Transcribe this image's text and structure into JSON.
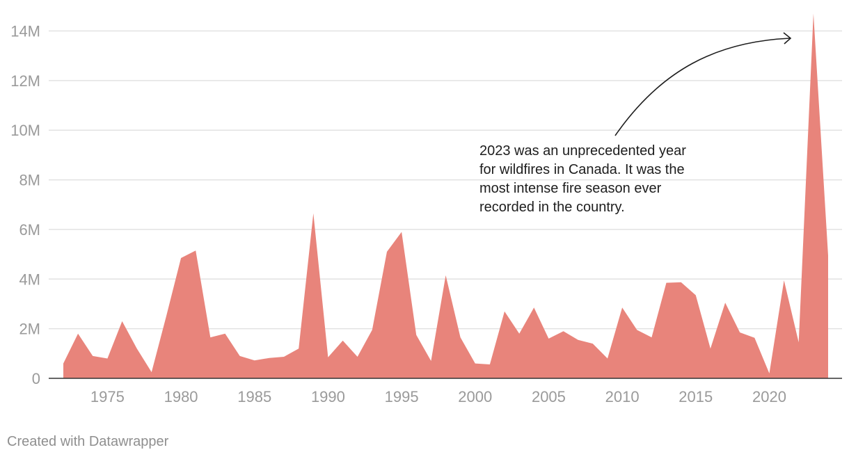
{
  "chart_data": {
    "type": "area",
    "x": [
      1972,
      1973,
      1974,
      1975,
      1976,
      1977,
      1978,
      1979,
      1980,
      1981,
      1982,
      1983,
      1984,
      1985,
      1986,
      1987,
      1988,
      1989,
      1990,
      1991,
      1992,
      1993,
      1994,
      1995,
      1996,
      1997,
      1998,
      1999,
      2000,
      2001,
      2002,
      2003,
      2004,
      2005,
      2006,
      2007,
      2008,
      2009,
      2010,
      2011,
      2012,
      2013,
      2014,
      2015,
      2016,
      2017,
      2018,
      2019,
      2020,
      2021,
      2022,
      2023,
      2024
    ],
    "y": [
      600000,
      1800000,
      900000,
      800000,
      2300000,
      1200000,
      250000,
      2500000,
      4850000,
      5150000,
      1650000,
      1800000,
      900000,
      720000,
      820000,
      870000,
      1200000,
      6650000,
      850000,
      1520000,
      870000,
      1950000,
      5100000,
      5900000,
      1750000,
      700000,
      4150000,
      1650000,
      600000,
      560000,
      2700000,
      1800000,
      2850000,
      1600000,
      1900000,
      1550000,
      1400000,
      800000,
      2850000,
      1950000,
      1650000,
      3850000,
      3870000,
      3350000,
      1200000,
      3050000,
      1850000,
      1630000,
      200000,
      3950000,
      1450000,
      14700000,
      4950000
    ],
    "xticks": [
      "1975",
      "1980",
      "1985",
      "1990",
      "1995",
      "2000",
      "2005",
      "2010",
      "2015",
      "2020"
    ],
    "yticks": [
      "0",
      "2M",
      "4M",
      "6M",
      "8M",
      "10M",
      "12M",
      "14M"
    ],
    "ylim": [
      0,
      14000000
    ],
    "grid": true,
    "color": "#e8847b",
    "annotation": "2023 was an unprecedented year for wildfires in Canada. It was the most intense fire season ever recorded in the country.",
    "annotation_lines": [
      "2023 was an unprecedented year",
      "for wildfires in Canada. It was the",
      "most intense fire season ever",
      "recorded in the country."
    ]
  },
  "footer": {
    "credit": "Created with Datawrapper"
  }
}
